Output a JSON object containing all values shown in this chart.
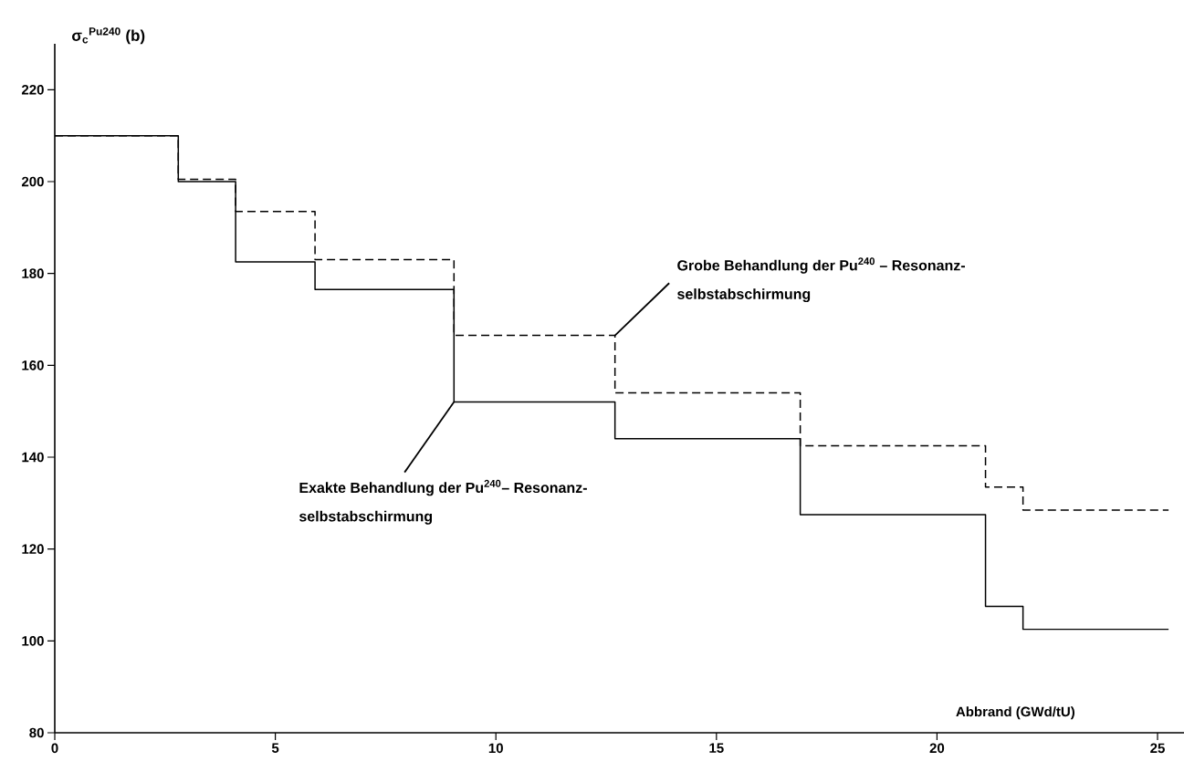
{
  "chart_data": {
    "type": "step",
    "xlabel": "Abbrand (GWd/tU)",
    "ylabel": "σ$_{c}$$^{Pu240}$ (b)",
    "x": [
      0,
      2.8,
      4.1,
      5.9,
      9.05,
      12.7,
      16.9,
      21.1,
      21.95,
      25.25
    ],
    "series": [
      {
        "color": "#000000",
        "line_style": "solid",
        "values": [
          210,
          200,
          182.5,
          176.5,
          152,
          144,
          127.5,
          107.5,
          102.5,
          102.5
        ]
      },
      {
        "color": "#000000",
        "line_style": "dashed",
        "values": [
          210,
          200.5,
          193.5,
          183,
          166.5,
          154,
          142.5,
          133.5,
          128.5,
          128.5
        ]
      }
    ],
    "xlim": [
      0,
      25.6
    ],
    "ylim": [
      80,
      230
    ],
    "xticks": [
      0,
      5,
      10,
      15,
      20,
      25
    ],
    "yticks": [
      80,
      100,
      120,
      140,
      160,
      180,
      200,
      220
    ],
    "grid": false,
    "marker": "none",
    "annotations": [
      {
        "text": "Exakte Behandlung der Pu$^{240}$– Resonanz-",
        "x": 9.05,
        "y": 152
      },
      "selbstabschirmung",
      {
        "text": "Grobe Behandlung der Pu$^{240}$ – Resonanz-",
        "x": 12.7,
        "y": 166.5
      },
      "selbstabschirmung"
    ]
  }
}
